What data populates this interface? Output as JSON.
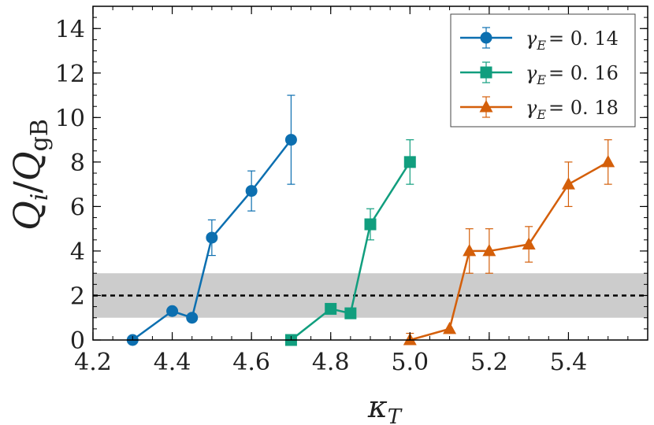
{
  "chart_data": {
    "type": "line",
    "title": "",
    "xlabel": "κ_T",
    "ylabel": "Q_i / Q_gB",
    "xlim": [
      4.2,
      5.6
    ],
    "ylim": [
      0,
      15
    ],
    "xticks": [
      4.2,
      4.4,
      4.6,
      4.8,
      5.0,
      5.2,
      5.4
    ],
    "xtick_labels": [
      "4.2",
      "4.4",
      "4.6",
      "4.8",
      "5.0",
      "5.2",
      "5.4"
    ],
    "yticks": [
      0,
      2,
      4,
      6,
      8,
      10,
      12,
      14
    ],
    "ytick_labels": [
      "0",
      "2",
      "4",
      "6",
      "8",
      "10",
      "12",
      "14"
    ],
    "legend_position": "top-right",
    "reference_line": {
      "y": 2,
      "style": "dashed",
      "color": "#000000"
    },
    "reference_band": {
      "y_min": 1,
      "y_max": 3,
      "color": "#cccccc"
    },
    "series": [
      {
        "name": "γ_E = 0.14",
        "label_prefix": "γ",
        "label_subscript": "E",
        "label_value": "= 0. 14",
        "color": "#0c6fb0",
        "marker": "circle",
        "x": [
          4.3,
          4.4,
          4.45,
          4.5,
          4.6,
          4.7
        ],
        "y": [
          0,
          1.3,
          1.0,
          4.6,
          6.7,
          9.0
        ],
        "err_low": [
          null,
          null,
          null,
          3.8,
          5.8,
          7.0
        ],
        "err_high": [
          null,
          null,
          null,
          5.4,
          7.6,
          11.0
        ]
      },
      {
        "name": "γ_E = 0.16",
        "label_prefix": "γ",
        "label_subscript": "E",
        "label_value": "= 0. 16",
        "color": "#119e7e",
        "marker": "square",
        "x": [
          4.7,
          4.8,
          4.85,
          4.9,
          5.0
        ],
        "y": [
          0,
          1.4,
          1.2,
          5.2,
          8.0
        ],
        "err_low": [
          null,
          null,
          null,
          4.5,
          7.0
        ],
        "err_high": [
          null,
          null,
          null,
          5.9,
          9.0
        ]
      },
      {
        "name": "γ_E = 0.18",
        "label_prefix": "γ",
        "label_subscript": "E",
        "label_value": "= 0. 18",
        "color": "#d45f0a",
        "marker": "triangle",
        "x": [
          5.0,
          5.1,
          5.15,
          5.2,
          5.3,
          5.4,
          5.5
        ],
        "y": [
          0,
          0.5,
          4.0,
          4.0,
          4.3,
          7.0,
          8.0
        ],
        "err_low": [
          null,
          null,
          3.0,
          3.0,
          3.5,
          6.0,
          7.0
        ],
        "err_high": [
          0.3,
          null,
          5.0,
          5.0,
          5.1,
          8.0,
          9.0
        ]
      }
    ]
  }
}
